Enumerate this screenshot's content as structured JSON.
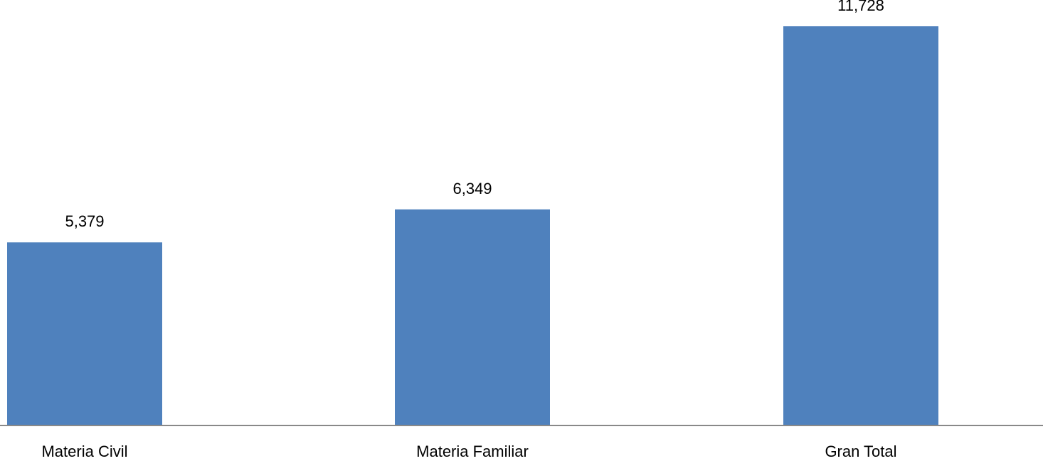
{
  "chart_data": {
    "type": "bar",
    "categories": [
      "Materia Civil",
      "Materia Familiar",
      "Gran Total"
    ],
    "values": [
      5379,
      6349,
      11728
    ],
    "data_labels": [
      "5,379",
      "6,349",
      "11,728"
    ],
    "title": "",
    "xlabel": "",
    "ylabel": "",
    "ylim": [
      0,
      12500
    ],
    "grid": false,
    "legend": "none",
    "colors": {
      "bar": "#4f81bd",
      "axis": "#898989",
      "text": "#000000"
    }
  }
}
